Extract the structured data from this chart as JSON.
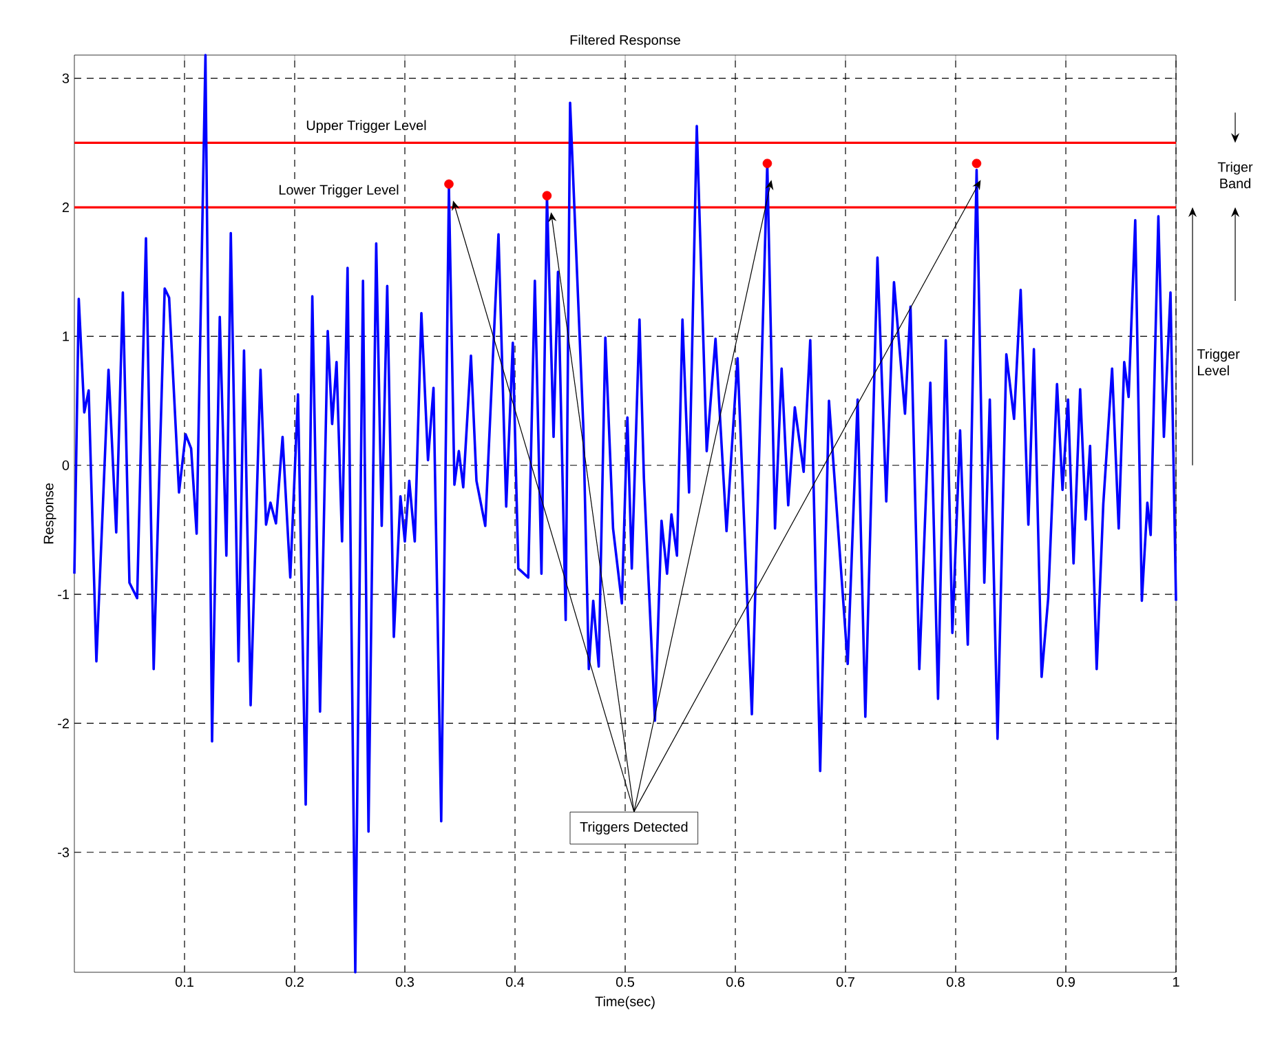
{
  "chart_data": {
    "type": "line",
    "title": "Filtered Response",
    "xlabel": "Time(sec)",
    "ylabel": "Response",
    "xlim": [
      0,
      1
    ],
    "ylim": [
      -3.93,
      3.18
    ],
    "xticks": [
      0.1,
      0.2,
      0.3,
      0.4,
      0.5,
      0.6,
      0.7,
      0.8,
      0.9,
      1
    ],
    "yticks": [
      -3,
      -2,
      -1,
      0,
      1,
      2,
      3
    ],
    "grid": true,
    "series": [
      {
        "color": "#0000ff",
        "marker": "none",
        "x": [
          0.0,
          0.004,
          0.009,
          0.013,
          0.02,
          0.031,
          0.038,
          0.044,
          0.05,
          0.057,
          0.065,
          0.072,
          0.082,
          0.086,
          0.095,
          0.101,
          0.106,
          0.111,
          0.119,
          0.125,
          0.132,
          0.138,
          0.142,
          0.149,
          0.154,
          0.16,
          0.169,
          0.174,
          0.178,
          0.183,
          0.189,
          0.196,
          0.203,
          0.21,
          0.216,
          0.223,
          0.23,
          0.234,
          0.238,
          0.243,
          0.248,
          0.255,
          0.262,
          0.267,
          0.274,
          0.279,
          0.284,
          0.29,
          0.296,
          0.3,
          0.304,
          0.309,
          0.315,
          0.321,
          0.326,
          0.333,
          0.34,
          0.345,
          0.349,
          0.353,
          0.36,
          0.365,
          0.373,
          0.385,
          0.392,
          0.398,
          0.403,
          0.412,
          0.418,
          0.424,
          0.429,
          0.435,
          0.439,
          0.446,
          0.45,
          0.462,
          0.467,
          0.471,
          0.476,
          0.482,
          0.489,
          0.497,
          0.502,
          0.506,
          0.513,
          0.517,
          0.527,
          0.533,
          0.538,
          0.542,
          0.547,
          0.552,
          0.558,
          0.565,
          0.574,
          0.582,
          0.592,
          0.602,
          0.615,
          0.629,
          0.636,
          0.642,
          0.648,
          0.654,
          0.662,
          0.668,
          0.677,
          0.685,
          0.702,
          0.711,
          0.718,
          0.729,
          0.737,
          0.744,
          0.754,
          0.759,
          0.767,
          0.777,
          0.784,
          0.791,
          0.797,
          0.804,
          0.811,
          0.819,
          0.826,
          0.831,
          0.838,
          0.846,
          0.853,
          0.859,
          0.866,
          0.871,
          0.878,
          0.884,
          0.892,
          0.897,
          0.902,
          0.907,
          0.913,
          0.918,
          0.922,
          0.928,
          0.934,
          0.942,
          0.948,
          0.953,
          0.957,
          0.963,
          0.969,
          0.974,
          0.977,
          0.984,
          0.989,
          0.995,
          1.0
        ],
        "values": [
          -0.84,
          1.29,
          0.41,
          0.58,
          -1.52,
          0.74,
          -0.52,
          1.34,
          -0.91,
          -1.03,
          1.76,
          -1.58,
          1.37,
          1.3,
          -0.21,
          0.24,
          0.13,
          -0.53,
          3.18,
          -2.14,
          1.15,
          -0.7,
          1.8,
          -1.52,
          0.89,
          -1.86,
          0.74,
          -0.46,
          -0.29,
          -0.45,
          0.22,
          -0.87,
          0.55,
          -2.63,
          1.31,
          -1.91,
          1.04,
          0.32,
          0.8,
          -0.59,
          1.53,
          -3.93,
          1.43,
          -2.84,
          1.72,
          -0.47,
          1.39,
          -1.33,
          -0.24,
          -0.59,
          -0.12,
          -0.59,
          1.18,
          0.04,
          0.6,
          -2.76,
          2.15,
          -0.15,
          0.11,
          -0.17,
          0.85,
          -0.12,
          -0.47,
          1.79,
          -0.32,
          0.95,
          -0.8,
          -0.87,
          1.43,
          -0.84,
          2.09,
          0.22,
          1.5,
          -1.2,
          2.81,
          0.3,
          -1.58,
          -1.05,
          -1.56,
          0.99,
          -0.49,
          -1.07,
          0.37,
          -0.8,
          1.13,
          -0.1,
          -1.98,
          -0.43,
          -0.84,
          -0.38,
          -0.7,
          1.13,
          -0.21,
          2.63,
          0.11,
          0.98,
          -0.51,
          0.83,
          -1.93,
          2.34,
          -0.49,
          0.75,
          -0.31,
          0.45,
          -0.05,
          0.97,
          -2.37,
          0.5,
          -1.54,
          0.51,
          -1.95,
          1.61,
          -0.28,
          1.42,
          0.4,
          1.23,
          -1.58,
          0.64,
          -1.81,
          0.97,
          -1.3,
          0.27,
          -1.39,
          2.29,
          -0.91,
          0.51,
          -2.12,
          0.86,
          0.36,
          1.36,
          -0.46,
          0.9,
          -1.64,
          -1.03,
          0.63,
          -0.19,
          0.51,
          -0.76,
          0.59,
          -0.42,
          0.15,
          -1.58,
          -0.3,
          0.75,
          -0.49,
          0.8,
          0.53,
          1.9,
          -1.05,
          -0.29,
          -0.54,
          1.93,
          0.22,
          1.34,
          -1.05
        ]
      },
      {
        "type": "scatter",
        "color": "#ff0000",
        "marker": "circle",
        "x": [
          0.34,
          0.429,
          0.629,
          0.819
        ],
        "values": [
          2.18,
          2.09,
          2.34,
          2.34
        ]
      }
    ],
    "ref_lines": [
      {
        "axis": "y",
        "value": 2.5,
        "label": "Upper Trigger Level",
        "color": "#ff0000"
      },
      {
        "axis": "y",
        "value": 2.0,
        "label": "Lower Trigger Level",
        "color": "#ff0000"
      }
    ],
    "annotations": [
      "Triggers Detected",
      "Triger Band",
      "Trigger Level"
    ]
  }
}
